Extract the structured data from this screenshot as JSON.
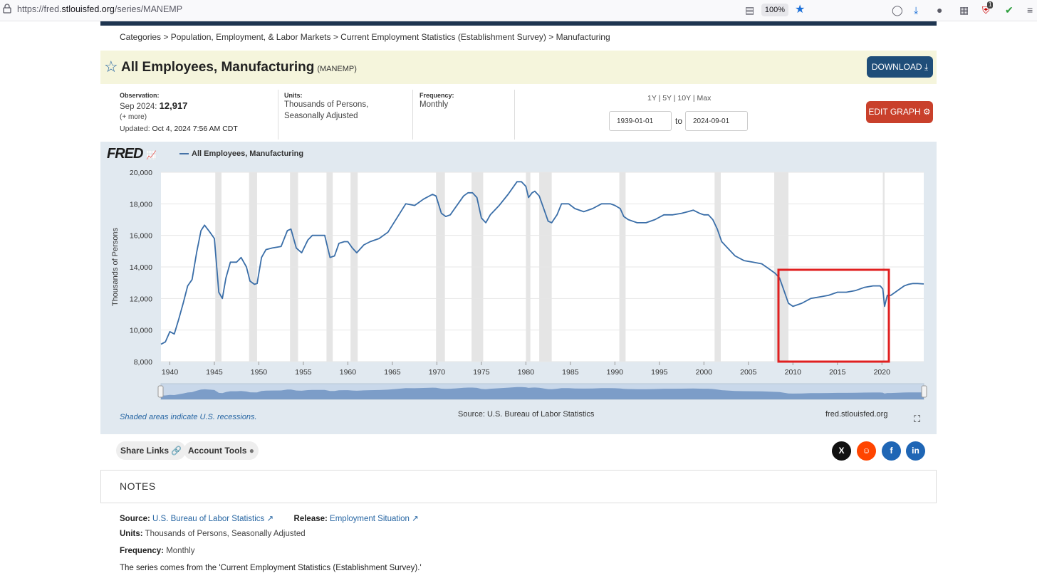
{
  "browser": {
    "url_prefix": "https://fred.",
    "url_domain": "stlouisfed.org",
    "url_path": "/series/MANEMP",
    "zoom": "100%",
    "badge": "1"
  },
  "breadcrumb": "Categories > Population, Employment, & Labor Markets > Current Employment Statistics (Establishment Survey) > Manufacturing",
  "header": {
    "title": "All Employees, Manufacturing",
    "code": "(MANEMP)",
    "download_label": "DOWNLOAD"
  },
  "meta": {
    "observation_label": "Observation:",
    "observation_date": "Sep 2024:",
    "observation_value": "12,917",
    "more": "(+ more)",
    "updated_label": "Updated:",
    "updated_value": "Oct 4, 2024 7:56 AM CDT",
    "units_label": "Units:",
    "units_line1": "Thousands of Persons,",
    "units_line2": "Seasonally Adjusted",
    "frequency_label": "Frequency:",
    "frequency_value": "Monthly"
  },
  "range": {
    "links": "1Y | 5Y | 10Y | Max",
    "start": "1939-01-01",
    "end": "2024-09-01",
    "to": "to",
    "edit_label": "EDIT GRAPH"
  },
  "graph": {
    "logo": "FRED",
    "legend": "All Employees, Manufacturing",
    "shaded_note": "Shaded areas indicate U.S. recessions.",
    "source": "Source: U.S. Bureau of Labor Statistics",
    "site": "fred.stlouisfed.org"
  },
  "chart_data": {
    "type": "line",
    "ylabel": "Thousands of Persons",
    "xlim": [
      1939,
      2024.7
    ],
    "ylim": [
      8000,
      20000
    ],
    "y_ticks": [
      "20,000",
      "18,000",
      "16,000",
      "14,000",
      "12,000",
      "10,000",
      "8,000"
    ],
    "y_tick_values": [
      20000,
      18000,
      16000,
      14000,
      12000,
      10000,
      8000
    ],
    "x_ticks": [
      "1940",
      "1945",
      "1950",
      "1955",
      "1960",
      "1965",
      "1970",
      "1975",
      "1980",
      "1985",
      "1990",
      "1995",
      "2000",
      "2005",
      "2010",
      "2015",
      "2020"
    ],
    "x_tick_values": [
      1940,
      1945,
      1950,
      1955,
      1960,
      1965,
      1970,
      1975,
      1980,
      1985,
      1990,
      1995,
      2000,
      2005,
      2010,
      2015,
      2020
    ],
    "recessions": [
      [
        1945.1,
        1945.8
      ],
      [
        1948.9,
        1949.8
      ],
      [
        1953.5,
        1954.4
      ],
      [
        1957.6,
        1958.3
      ],
      [
        1960.3,
        1961.1
      ],
      [
        1969.9,
        1970.9
      ],
      [
        1973.9,
        1975.2
      ],
      [
        1980.0,
        1980.5
      ],
      [
        1981.5,
        1982.9
      ],
      [
        1990.5,
        1991.2
      ],
      [
        2001.2,
        2001.9
      ],
      [
        2007.9,
        2009.5
      ],
      [
        2020.1,
        2020.3
      ]
    ],
    "series": [
      {
        "name": "All Employees, Manufacturing",
        "x": [
          1939,
          1939.5,
          1940,
          1940.5,
          1941,
          1941.5,
          1942,
          1942.5,
          1943,
          1943.5,
          1943.9,
          1944.5,
          1945.0,
          1945.5,
          1945.9,
          1946.3,
          1946.8,
          1947.5,
          1948.0,
          1948.6,
          1949.0,
          1949.5,
          1949.8,
          1950.3,
          1950.8,
          1951.5,
          1952.5,
          1953.2,
          1953.6,
          1954.2,
          1954.8,
          1955.5,
          1956.0,
          1956.8,
          1957.4,
          1958.0,
          1958.5,
          1959.0,
          1959.6,
          1960.0,
          1960.5,
          1961.0,
          1961.8,
          1962.5,
          1963.5,
          1964.5,
          1965.5,
          1966.5,
          1967.5,
          1968.5,
          1969.5,
          1969.9,
          1970.5,
          1971.0,
          1971.5,
          1972.0,
          1973.0,
          1973.5,
          1974.0,
          1974.5,
          1975.0,
          1975.5,
          1976.0,
          1977.0,
          1978.0,
          1979.0,
          1979.5,
          1980.0,
          1980.3,
          1980.7,
          1981.0,
          1981.5,
          1982.0,
          1982.5,
          1982.9,
          1983.5,
          1984.0,
          1984.8,
          1985.5,
          1986.5,
          1987.5,
          1988.5,
          1989.5,
          1990.0,
          1990.6,
          1991.0,
          1991.5,
          1992.5,
          1993.5,
          1994.5,
          1995.5,
          1996.5,
          1997.5,
          1998.2,
          1998.8,
          1999.5,
          2000.0,
          2000.5,
          2001.0,
          2001.5,
          2002.0,
          2002.5,
          2003.5,
          2004.5,
          2005.5,
          2006.5,
          2007.5,
          2008.0,
          2008.5,
          2009.0,
          2009.5,
          2010.0,
          2011.0,
          2012.0,
          2013.0,
          2014.0,
          2015.0,
          2016.0,
          2017.0,
          2018.0,
          2019.0,
          2019.8,
          2020.1,
          2020.3,
          2020.6,
          2021.0,
          2021.5,
          2022.0,
          2022.5,
          2023.0,
          2023.5,
          2024.0,
          2024.7
        ],
        "values": [
          9100,
          9250,
          9900,
          9750,
          10700,
          11700,
          12800,
          13200,
          14900,
          16300,
          16650,
          16200,
          15800,
          12400,
          12000,
          13300,
          14300,
          14300,
          14600,
          14000,
          13100,
          12900,
          12950,
          14600,
          15100,
          15200,
          15300,
          16300,
          16400,
          15200,
          14900,
          15700,
          16000,
          16000,
          16000,
          14600,
          14700,
          15500,
          15600,
          15600,
          15200,
          14900,
          15400,
          15600,
          15800,
          16200,
          17100,
          18000,
          17900,
          18300,
          18600,
          18500,
          17400,
          17200,
          17300,
          17700,
          18500,
          18700,
          18700,
          18400,
          17100,
          16800,
          17300,
          17900,
          18600,
          19400,
          19400,
          19100,
          18400,
          18700,
          18800,
          18500,
          17700,
          16900,
          16800,
          17300,
          18000,
          18000,
          17700,
          17500,
          17700,
          18000,
          18000,
          17900,
          17700,
          17200,
          17000,
          16800,
          16800,
          17000,
          17300,
          17300,
          17400,
          17500,
          17600,
          17400,
          17300,
          17300,
          17000,
          16400,
          15600,
          15300,
          14700,
          14400,
          14300,
          14200,
          13800,
          13600,
          13300,
          12500,
          11700,
          11500,
          11700,
          12000,
          12100,
          12200,
          12400,
          12400,
          12500,
          12700,
          12800,
          12800,
          12600,
          11500,
          12200,
          12200,
          12400,
          12600,
          12800,
          12900,
          12950,
          12950,
          12920
        ]
      }
    ]
  },
  "tools": {
    "share_label": "Share Links",
    "account_label": "Account Tools"
  },
  "notes": {
    "title": "NOTES",
    "source_label": "Source:",
    "source_value": "U.S. Bureau of Labor Statistics",
    "release_label": "Release:",
    "release_value": "Employment Situation",
    "units_label": "Units:",
    "units_value": "Thousands of Persons, Seasonally Adjusted",
    "frequency_label": "Frequency:",
    "frequency_value": "Monthly",
    "description": "The series comes from the 'Current Employment Statistics (Establishment Survey).'"
  }
}
